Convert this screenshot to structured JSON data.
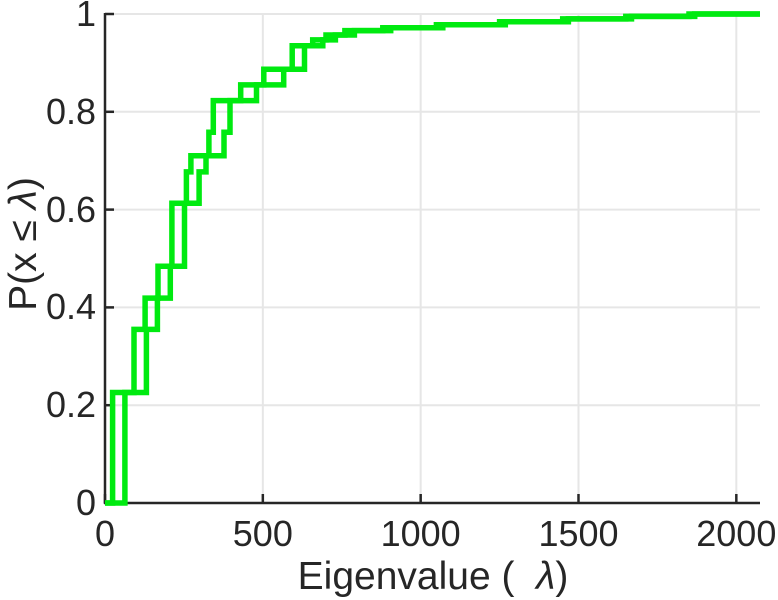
{
  "figure": {
    "background": "#ffffff",
    "axis_color": "#262626",
    "grid_color": "#e6e6e6",
    "curve_color": "#00ea10"
  },
  "chart_data": {
    "type": "line",
    "subtype": "step-ecdf",
    "title": "",
    "xlabel": {
      "prefix": "Eigenvalue (  ",
      "lambda": "λ",
      "suffix": ")"
    },
    "ylabel": {
      "prefix": "P(x ≤ ",
      "lambda": "λ",
      "suffix": ")"
    },
    "xlim": [
      0,
      2075
    ],
    "ylim": [
      0,
      1
    ],
    "grid": true,
    "legend": "none",
    "x_ticks": [
      0,
      500,
      1000,
      1500,
      2000
    ],
    "x_tick_labels": [
      "0",
      "500",
      "1000",
      "1500",
      "2000"
    ],
    "y_ticks": [
      0,
      0.2,
      0.4,
      0.6,
      0.8,
      1
    ],
    "y_tick_labels": [
      "0",
      "0.2",
      "0.4",
      "0.6",
      "0.8",
      "1"
    ],
    "levels": [
      0.226,
      0.355,
      0.419,
      0.484,
      0.613,
      0.677,
      0.71,
      0.758,
      0.823,
      0.855,
      0.887,
      0.935,
      0.947,
      0.957,
      0.966,
      0.972,
      0.978,
      0.984,
      0.99,
      0.995,
      1.0
    ],
    "series": [
      {
        "name": "ecdf-curve-1",
        "jump_x": [
          24,
          92,
          127,
          168,
          212,
          258,
          272,
          329,
          343,
          430,
          503,
          593,
          658,
          700,
          760,
          880,
          1050,
          1250,
          1450,
          1650,
          1850
        ]
      },
      {
        "name": "ecdf-curve-2",
        "jump_x": [
          63,
          131,
          166,
          207,
          252,
          298,
          320,
          377,
          396,
          480,
          566,
          632,
          690,
          730,
          790,
          905,
          1070,
          1268,
          1468,
          1668,
          1868
        ]
      }
    ]
  }
}
